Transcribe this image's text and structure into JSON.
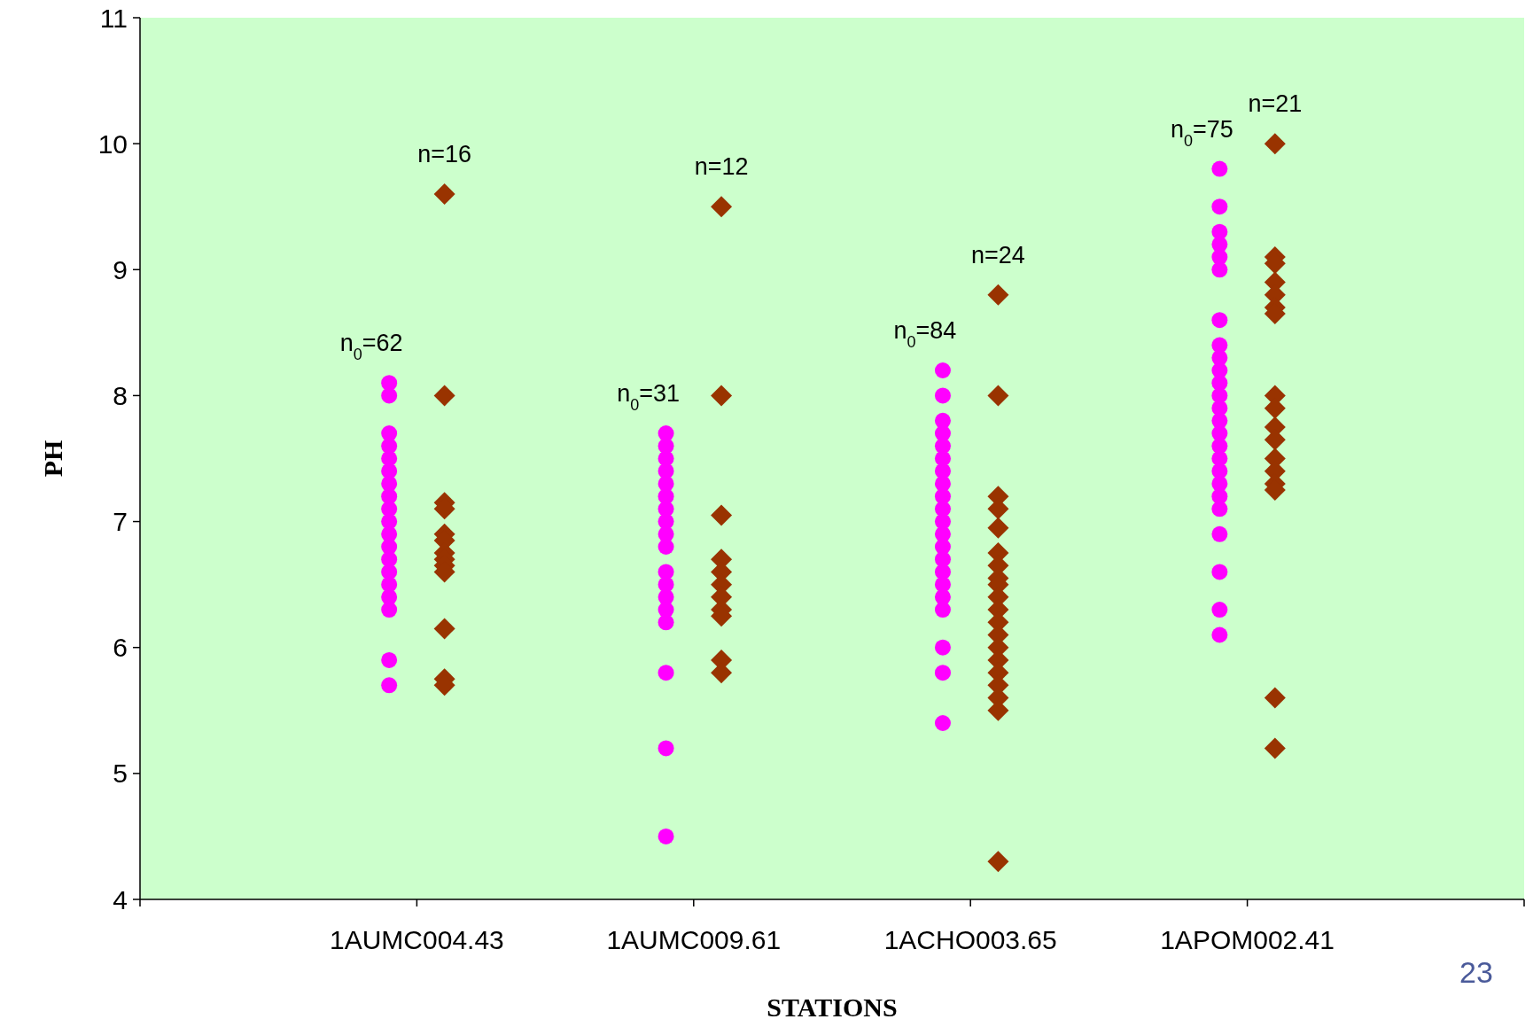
{
  "chart_data": {
    "type": "scatter",
    "xlabel": "STATIONS",
    "ylabel": "PH",
    "categories": [
      "1AUMC004.43",
      "1AUMC009.61",
      "1ACHO003.65",
      "1APOM002.41"
    ],
    "ylim": [
      4,
      11
    ],
    "yticks": [
      4,
      5,
      6,
      7,
      8,
      9,
      10,
      11
    ],
    "grid": false,
    "series": [
      {
        "color": "#ff00ff",
        "marker": "circle",
        "x": [
          "1AUMC004.43",
          "1AUMC004.43",
          "1AUMC004.43",
          "1AUMC004.43",
          "1AUMC004.43",
          "1AUMC004.43",
          "1AUMC004.43",
          "1AUMC004.43",
          "1AUMC004.43",
          "1AUMC004.43",
          "1AUMC004.43",
          "1AUMC004.43",
          "1AUMC004.43",
          "1AUMC004.43",
          "1AUMC004.43",
          "1AUMC004.43",
          "1AUMC004.43",
          "1AUMC004.43",
          "1AUMC004.43",
          "1AUMC009.61",
          "1AUMC009.61",
          "1AUMC009.61",
          "1AUMC009.61",
          "1AUMC009.61",
          "1AUMC009.61",
          "1AUMC009.61",
          "1AUMC009.61",
          "1AUMC009.61",
          "1AUMC009.61",
          "1AUMC009.61",
          "1AUMC009.61",
          "1AUMC009.61",
          "1AUMC009.61",
          "1AUMC009.61",
          "1AUMC009.61",
          "1AUMC009.61",
          "1AUMC009.61",
          "1ACHO003.65",
          "1ACHO003.65",
          "1ACHO003.65",
          "1ACHO003.65",
          "1ACHO003.65",
          "1ACHO003.65",
          "1ACHO003.65",
          "1ACHO003.65",
          "1ACHO003.65",
          "1ACHO003.65",
          "1ACHO003.65",
          "1ACHO003.65",
          "1ACHO003.65",
          "1ACHO003.65",
          "1ACHO003.65",
          "1ACHO003.65",
          "1ACHO003.65",
          "1ACHO003.65",
          "1ACHO003.65",
          "1ACHO003.65",
          "1ACHO003.65",
          "1APOM002.41",
          "1APOM002.41",
          "1APOM002.41",
          "1APOM002.41",
          "1APOM002.41",
          "1APOM002.41",
          "1APOM002.41",
          "1APOM002.41",
          "1APOM002.41",
          "1APOM002.41",
          "1APOM002.41",
          "1APOM002.41",
          "1APOM002.41",
          "1APOM002.41",
          "1APOM002.41",
          "1APOM002.41",
          "1APOM002.41",
          "1APOM002.41",
          "1APOM002.41",
          "1APOM002.41",
          "1APOM002.41",
          "1APOM002.41",
          "1APOM002.41",
          "1APOM002.41",
          "1APOM002.41"
        ],
        "values": [
          8.1,
          8.0,
          7.7,
          7.6,
          7.5,
          7.4,
          7.3,
          7.2,
          7.1,
          7.0,
          6.9,
          6.8,
          6.7,
          6.6,
          6.5,
          6.4,
          6.3,
          5.9,
          5.7,
          7.7,
          7.6,
          7.5,
          7.4,
          7.3,
          7.2,
          7.1,
          7.0,
          6.9,
          6.8,
          6.6,
          6.5,
          6.4,
          6.3,
          6.2,
          5.8,
          5.2,
          4.5,
          8.2,
          8.0,
          7.8,
          7.7,
          7.6,
          7.5,
          7.4,
          7.3,
          7.2,
          7.1,
          7.0,
          6.9,
          6.8,
          6.7,
          6.6,
          6.5,
          6.4,
          6.3,
          6.0,
          5.8,
          5.4,
          9.8,
          9.5,
          9.3,
          9.2,
          9.1,
          9.0,
          8.6,
          8.4,
          8.3,
          8.2,
          8.1,
          8.0,
          7.9,
          7.8,
          7.7,
          7.6,
          7.5,
          7.4,
          7.3,
          7.2,
          7.1,
          6.9,
          6.6,
          6.3,
          6.1
        ]
      },
      {
        "color": "#993300",
        "marker": "diamond",
        "x": [
          "1AUMC004.43",
          "1AUMC004.43",
          "1AUMC004.43",
          "1AUMC004.43",
          "1AUMC004.43",
          "1AUMC004.43",
          "1AUMC004.43",
          "1AUMC004.43",
          "1AUMC004.43",
          "1AUMC004.43",
          "1AUMC004.43",
          "1AUMC004.43",
          "1AUMC004.43",
          "1AUMC009.61",
          "1AUMC009.61",
          "1AUMC009.61",
          "1AUMC009.61",
          "1AUMC009.61",
          "1AUMC009.61",
          "1AUMC009.61",
          "1AUMC009.61",
          "1AUMC009.61",
          "1AUMC009.61",
          "1AUMC009.61",
          "1ACHO003.65",
          "1ACHO003.65",
          "1ACHO003.65",
          "1ACHO003.65",
          "1ACHO003.65",
          "1ACHO003.65",
          "1ACHO003.65",
          "1ACHO003.65",
          "1ACHO003.65",
          "1ACHO003.65",
          "1ACHO003.65",
          "1ACHO003.65",
          "1ACHO003.65",
          "1ACHO003.65",
          "1ACHO003.65",
          "1ACHO003.65",
          "1ACHO003.65",
          "1ACHO003.65",
          "1ACHO003.65",
          "1ACHO003.65",
          "1APOM002.41",
          "1APOM002.41",
          "1APOM002.41",
          "1APOM002.41",
          "1APOM002.41",
          "1APOM002.41",
          "1APOM002.41",
          "1APOM002.41",
          "1APOM002.41",
          "1APOM002.41",
          "1APOM002.41",
          "1APOM002.41",
          "1APOM002.41",
          "1APOM002.41",
          "1APOM002.41",
          "1APOM002.41",
          "1APOM002.41"
        ],
        "values": [
          9.6,
          8.0,
          7.15,
          7.1,
          6.9,
          6.85,
          6.75,
          6.7,
          6.65,
          6.6,
          6.15,
          5.75,
          5.7,
          9.5,
          8.0,
          7.05,
          6.7,
          6.6,
          6.5,
          6.4,
          6.3,
          6.25,
          5.9,
          5.8,
          8.8,
          8.0,
          7.2,
          7.1,
          6.95,
          6.75,
          6.65,
          6.55,
          6.5,
          6.4,
          6.3,
          6.2,
          6.1,
          6.0,
          5.9,
          5.8,
          5.7,
          5.6,
          5.5,
          4.3,
          10.0,
          9.1,
          9.05,
          8.9,
          8.8,
          8.7,
          8.65,
          8.0,
          7.9,
          7.75,
          7.65,
          7.5,
          7.4,
          7.3,
          7.25,
          5.6,
          5.2
        ]
      }
    ],
    "annotations": [
      "n$_{0}$=62",
      "n=16",
      "n$_{0}$=31",
      "n=12",
      "n$_{0}$=84",
      "n=24",
      "n$_{0}$=75",
      "n=21",
      "23"
    ]
  }
}
